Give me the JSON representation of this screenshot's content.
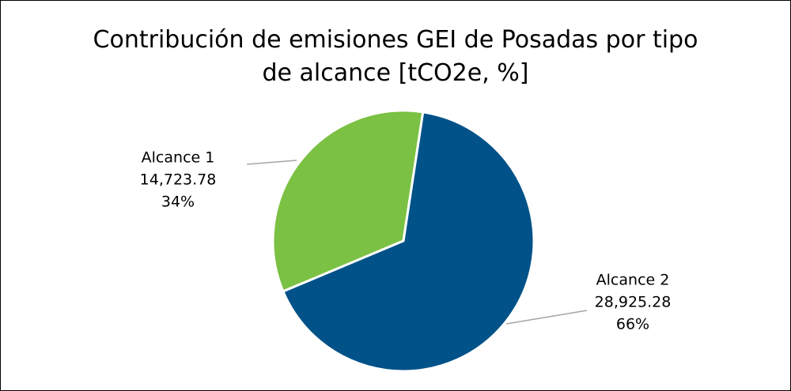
{
  "chart_data": {
    "type": "pie",
    "title": "Contribución de emisiones GEI de Posadas por tipo de alcance [tCO2e, %]",
    "categories": [
      "Alcance 1",
      "Alcance 2"
    ],
    "values": [
      14723.78,
      28925.28
    ],
    "value_labels": [
      "14,723.78",
      "28,925.28"
    ],
    "percentages": [
      34,
      66
    ],
    "percentage_labels": [
      "34%",
      "66%"
    ],
    "colors": [
      "#7bc143",
      "#005288"
    ]
  }
}
